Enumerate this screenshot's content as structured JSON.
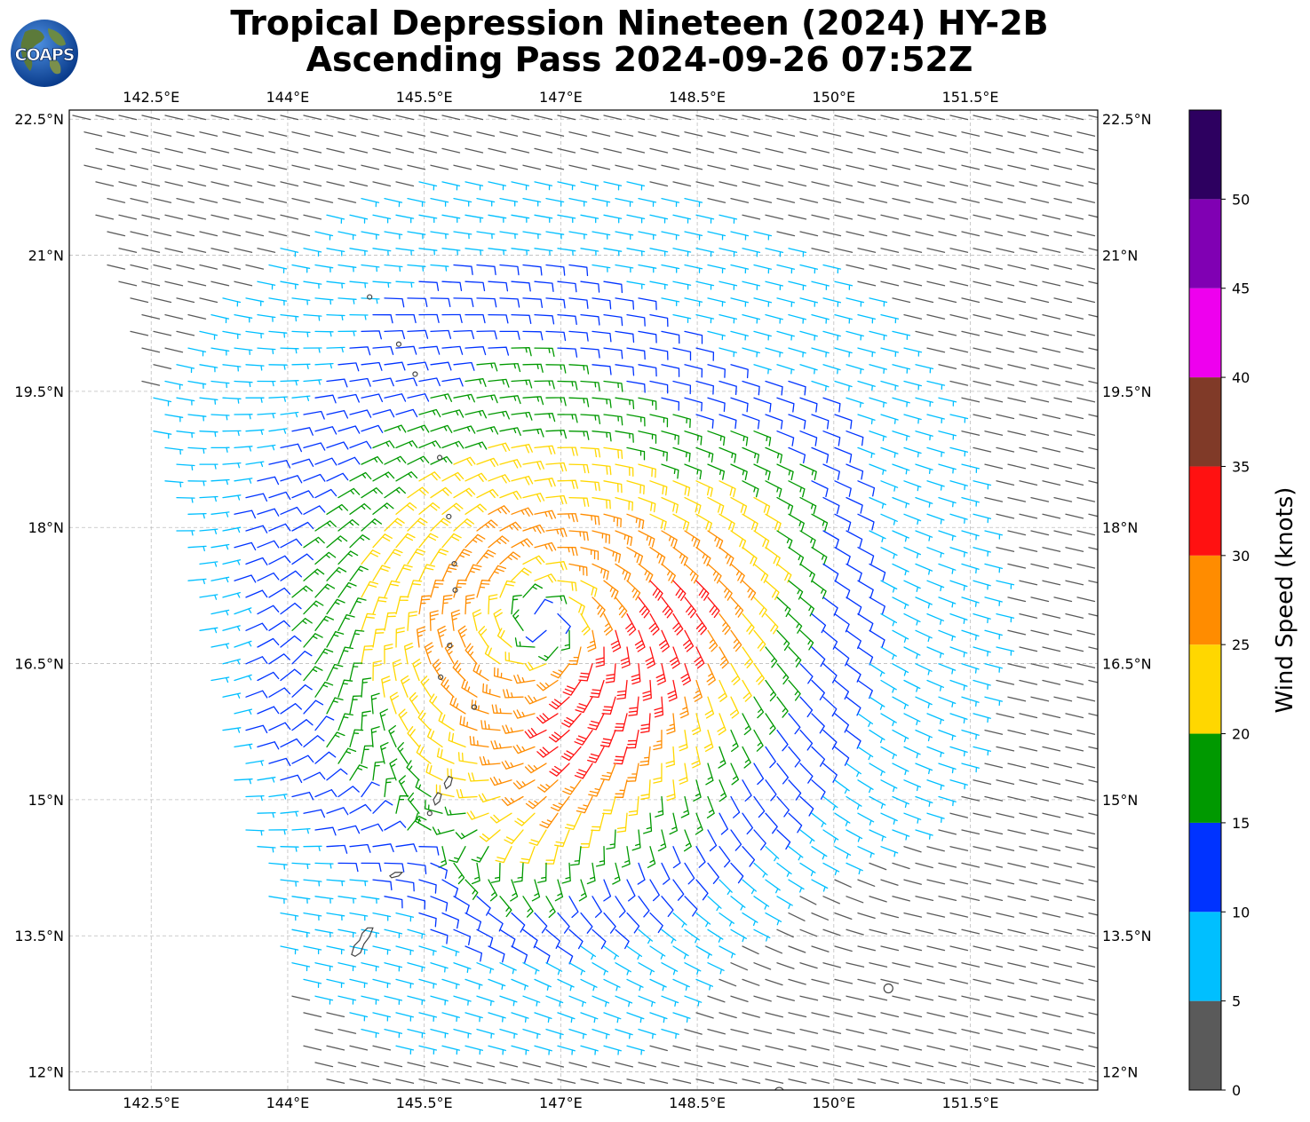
{
  "header": {
    "logo_text": "COAPS",
    "title_line1": "Tropical Depression Nineteen (2024) HY-2B",
    "title_line2": "Ascending Pass 2024-09-26 07:52Z"
  },
  "map": {
    "lon_range": [
      141.6,
      152.9
    ],
    "lat_range": [
      11.8,
      22.6
    ],
    "lon_ticks": [
      {
        "value": 142.5,
        "label": "142.5°E"
      },
      {
        "value": 144,
        "label": "144°E"
      },
      {
        "value": 145.5,
        "label": "145.5°E"
      },
      {
        "value": 147,
        "label": "147°E"
      },
      {
        "value": 148.5,
        "label": "148.5°E"
      },
      {
        "value": 150,
        "label": "150°E"
      },
      {
        "value": 151.5,
        "label": "151.5°E"
      }
    ],
    "lat_ticks": [
      {
        "value": 22.5,
        "label": "22.5°N"
      },
      {
        "value": 21,
        "label": "21°N"
      },
      {
        "value": 19.5,
        "label": "19.5°N"
      },
      {
        "value": 18,
        "label": "18°N"
      },
      {
        "value": 16.5,
        "label": "16.5°N"
      },
      {
        "value": 15,
        "label": "15°N"
      },
      {
        "value": 13.5,
        "label": "13.5°N"
      },
      {
        "value": 12,
        "label": "12°N"
      }
    ],
    "gridlines": true,
    "circulation_center": {
      "lon": 146.8,
      "lat": 16.95
    },
    "islands": [
      {
        "name": "Guam",
        "lon": 144.78,
        "lat": 13.45
      },
      {
        "name": "Rota",
        "lon": 145.2,
        "lat": 14.15
      },
      {
        "name": "Saipan",
        "lon": 145.75,
        "lat": 15.18
      },
      {
        "name": "Tinian",
        "lon": 145.63,
        "lat": 15.0
      },
      {
        "name": "Aguijan",
        "lon": 145.56,
        "lat": 14.85
      },
      {
        "name": "Farallon de Medinilla",
        "lon": 146.05,
        "lat": 16.02
      },
      {
        "name": "Anatahan",
        "lon": 145.68,
        "lat": 16.35
      },
      {
        "name": "Sarigan",
        "lon": 145.78,
        "lat": 16.7
      },
      {
        "name": "Guguan",
        "lon": 145.84,
        "lat": 17.31
      },
      {
        "name": "Alamagan",
        "lon": 145.83,
        "lat": 17.6
      },
      {
        "name": "Pagan",
        "lon": 145.77,
        "lat": 18.12
      },
      {
        "name": "Agrihan",
        "lon": 145.67,
        "lat": 18.77
      },
      {
        "name": "Asuncion",
        "lon": 145.4,
        "lat": 19.69
      },
      {
        "name": "Maug",
        "lon": 145.22,
        "lat": 20.02
      },
      {
        "name": "Farallon de Pajaros",
        "lon": 144.9,
        "lat": 20.54
      },
      {
        "name": "atoll-1",
        "lon": 150.6,
        "lat": 12.92
      },
      {
        "name": "atoll-2",
        "lon": 149.4,
        "lat": 11.78
      }
    ]
  },
  "colorbar": {
    "label": "Wind Speed (knots)",
    "bounds": [
      0,
      5,
      10,
      15,
      20,
      25,
      30,
      35,
      40,
      45,
      50,
      55
    ],
    "colors": [
      "#5a5a5a",
      "#00bfff",
      "#0033ff",
      "#009900",
      "#ffd700",
      "#ff8c00",
      "#ff1111",
      "#803a28",
      "#ee00ee",
      "#8000b3",
      "#2d0060"
    ],
    "tick_values": [
      0,
      5,
      10,
      15,
      20,
      25,
      30,
      35,
      40,
      45,
      50
    ],
    "tick_labels": [
      "0",
      "5",
      "10",
      "15",
      "20",
      "25",
      "30",
      "35",
      "40",
      "45",
      "50"
    ]
  }
}
